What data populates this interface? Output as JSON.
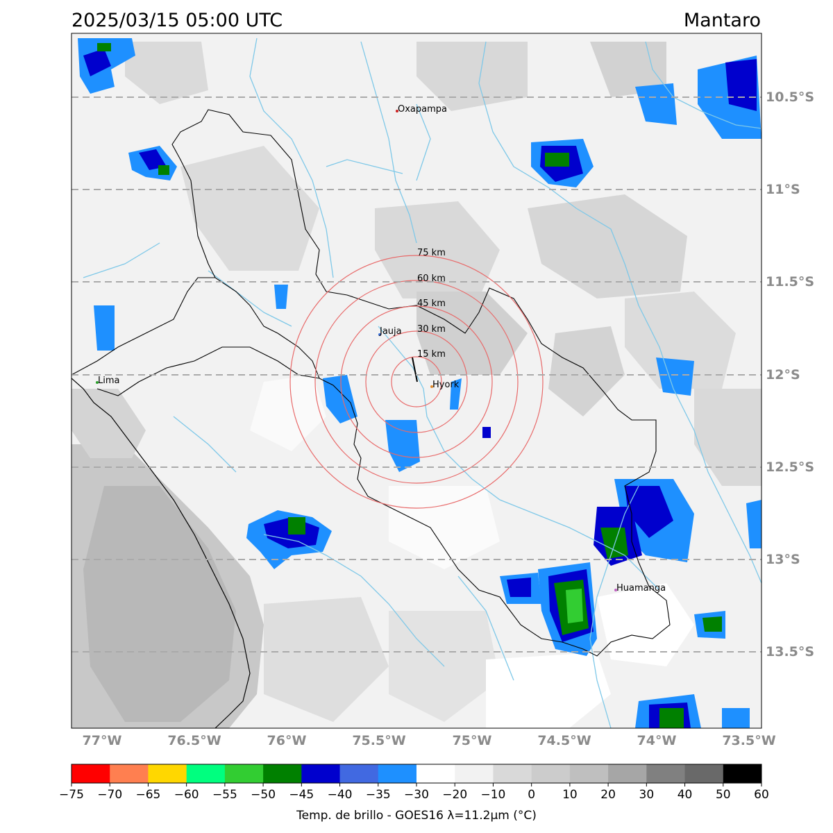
{
  "title_time": "2025/03/15 05:00 UTC",
  "title_region": "Mantaro",
  "latitude_labels": [
    "10.5°S",
    "11°S",
    "11.5°S",
    "12°S",
    "12.5°S",
    "13°S",
    "13.5°S"
  ],
  "longitude_labels": [
    "77°W",
    "76.5°W",
    "76°W",
    "75.5°W",
    "75°W",
    "74.5°W",
    "74°W",
    "73.5°W"
  ],
  "cities": [
    {
      "name": "Oxapampa",
      "color": "#cc2222"
    },
    {
      "name": "Jauja",
      "color": "#3a6fd8"
    },
    {
      "name": "Hyork",
      "color": "#e08a2a"
    },
    {
      "name": "Lima",
      "color": "#2aa02a"
    },
    {
      "name": "Huamanga",
      "color": "#c060c0"
    }
  ],
  "range_rings": [
    "15 km",
    "30 km",
    "45 km",
    "60 km",
    "75 km"
  ],
  "colorbar": {
    "ticks": [
      "−75",
      "−70",
      "−65",
      "−60",
      "−55",
      "−50",
      "−45",
      "−40",
      "−35",
      "−30",
      "−20",
      "−10",
      "0",
      "10",
      "20",
      "30",
      "40",
      "50",
      "60"
    ],
    "colors": [
      "#ff0000",
      "#ff7f50",
      "#ffd700",
      "#00ff7f",
      "#32cd32",
      "#008000",
      "#0000cd",
      "#4169e1",
      "#1e90ff",
      "#ffffff",
      "#f2f2f2",
      "#d9d9d9",
      "#cccccc",
      "#bfbfbf",
      "#a6a6a6",
      "#808080",
      "#696969",
      "#000000"
    ],
    "label": "Temp. de brillo - GOES16 λ=11.2μm (°C)"
  }
}
